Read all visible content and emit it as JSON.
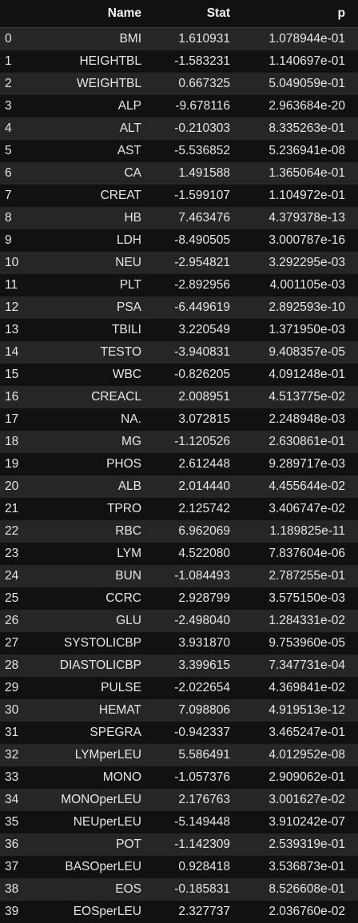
{
  "table": {
    "headers": {
      "index": "",
      "name": "Name",
      "stat": "Stat",
      "p": "p"
    },
    "rows": [
      {
        "index": "0",
        "name": "BMI",
        "stat": "1.610931",
        "p": "1.078944e-01"
      },
      {
        "index": "1",
        "name": "HEIGHTBL",
        "stat": "-1.583231",
        "p": "1.140697e-01"
      },
      {
        "index": "2",
        "name": "WEIGHTBL",
        "stat": "0.667325",
        "p": "5.049059e-01"
      },
      {
        "index": "3",
        "name": "ALP",
        "stat": "-9.678116",
        "p": "2.963684e-20"
      },
      {
        "index": "4",
        "name": "ALT",
        "stat": "-0.210303",
        "p": "8.335263e-01"
      },
      {
        "index": "5",
        "name": "AST",
        "stat": "-5.536852",
        "p": "5.236941e-08"
      },
      {
        "index": "6",
        "name": "CA",
        "stat": "1.491588",
        "p": "1.365064e-01"
      },
      {
        "index": "7",
        "name": "CREAT",
        "stat": "-1.599107",
        "p": "1.104972e-01"
      },
      {
        "index": "8",
        "name": "HB",
        "stat": "7.463476",
        "p": "4.379378e-13"
      },
      {
        "index": "9",
        "name": "LDH",
        "stat": "-8.490505",
        "p": "3.000787e-16"
      },
      {
        "index": "10",
        "name": "NEU",
        "stat": "-2.954821",
        "p": "3.292295e-03"
      },
      {
        "index": "11",
        "name": "PLT",
        "stat": "-2.892956",
        "p": "4.001105e-03"
      },
      {
        "index": "12",
        "name": "PSA",
        "stat": "-6.449619",
        "p": "2.892593e-10"
      },
      {
        "index": "13",
        "name": "TBILI",
        "stat": "3.220549",
        "p": "1.371950e-03"
      },
      {
        "index": "14",
        "name": "TESTO",
        "stat": "-3.940831",
        "p": "9.408357e-05"
      },
      {
        "index": "15",
        "name": "WBC",
        "stat": "-0.826205",
        "p": "4.091248e-01"
      },
      {
        "index": "16",
        "name": "CREACL",
        "stat": "2.008951",
        "p": "4.513775e-02"
      },
      {
        "index": "17",
        "name": "NA.",
        "stat": "3.072815",
        "p": "2.248948e-03"
      },
      {
        "index": "18",
        "name": "MG",
        "stat": "-1.120526",
        "p": "2.630861e-01"
      },
      {
        "index": "19",
        "name": "PHOS",
        "stat": "2.612448",
        "p": "9.289717e-03"
      },
      {
        "index": "20",
        "name": "ALB",
        "stat": "2.014440",
        "p": "4.455644e-02"
      },
      {
        "index": "21",
        "name": "TPRO",
        "stat": "2.125742",
        "p": "3.406747e-02"
      },
      {
        "index": "22",
        "name": "RBC",
        "stat": "6.962069",
        "p": "1.189825e-11"
      },
      {
        "index": "23",
        "name": "LYM",
        "stat": "4.522080",
        "p": "7.837604e-06"
      },
      {
        "index": "24",
        "name": "BUN",
        "stat": "-1.084493",
        "p": "2.787255e-01"
      },
      {
        "index": "25",
        "name": "CCRC",
        "stat": "2.928799",
        "p": "3.575150e-03"
      },
      {
        "index": "26",
        "name": "GLU",
        "stat": "-2.498040",
        "p": "1.284331e-02"
      },
      {
        "index": "27",
        "name": "SYSTOLICBP",
        "stat": "3.931870",
        "p": "9.753960e-05"
      },
      {
        "index": "28",
        "name": "DIASTOLICBP",
        "stat": "3.399615",
        "p": "7.347731e-04"
      },
      {
        "index": "29",
        "name": "PULSE",
        "stat": "-2.022654",
        "p": "4.369841e-02"
      },
      {
        "index": "30",
        "name": "HEMAT",
        "stat": "7.098806",
        "p": "4.919513e-12"
      },
      {
        "index": "31",
        "name": "SPEGRA",
        "stat": "-0.942337",
        "p": "3.465247e-01"
      },
      {
        "index": "32",
        "name": "LYMperLEU",
        "stat": "5.586491",
        "p": "4.012952e-08"
      },
      {
        "index": "33",
        "name": "MONO",
        "stat": "-1.057376",
        "p": "2.909062e-01"
      },
      {
        "index": "34",
        "name": "MONOperLEU",
        "stat": "2.176763",
        "p": "3.001627e-02"
      },
      {
        "index": "35",
        "name": "NEUperLEU",
        "stat": "-5.149448",
        "p": "3.910242e-07"
      },
      {
        "index": "36",
        "name": "POT",
        "stat": "-1.142309",
        "p": "2.539319e-01"
      },
      {
        "index": "37",
        "name": "BASOperLEU",
        "stat": "0.928418",
        "p": "3.536873e-01"
      },
      {
        "index": "38",
        "name": "EOS",
        "stat": "-0.185831",
        "p": "8.526608e-01"
      },
      {
        "index": "39",
        "name": "EOSperLEU",
        "stat": "2.327737",
        "p": "2.036760e-02"
      }
    ]
  }
}
